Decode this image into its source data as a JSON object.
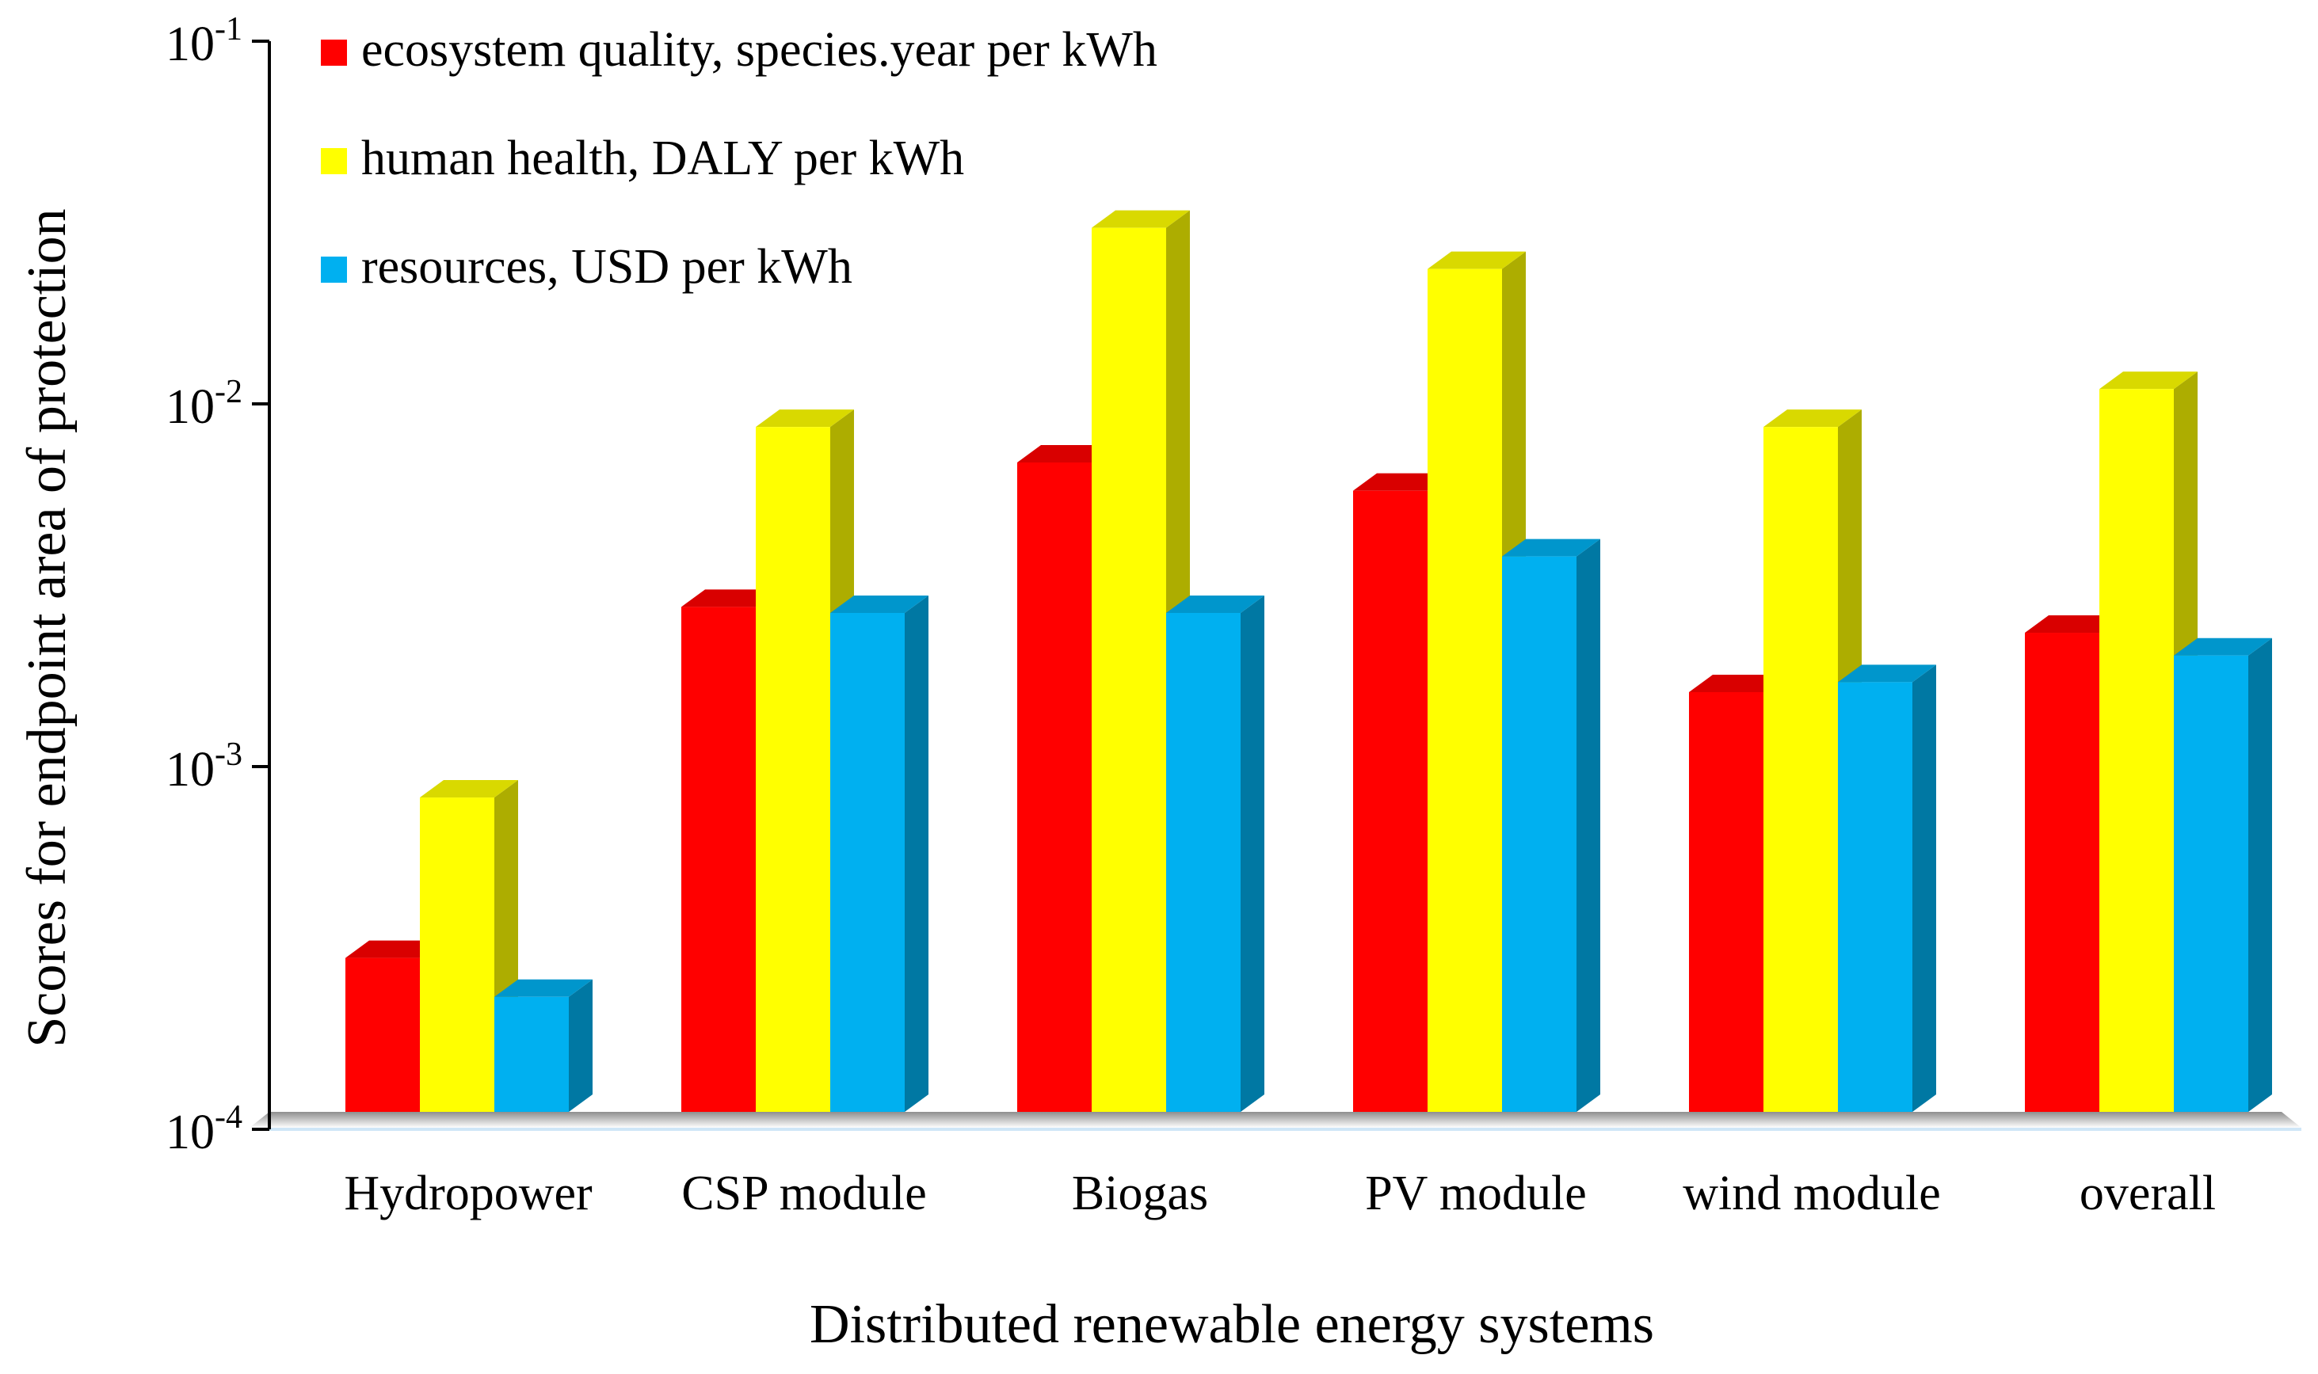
{
  "chart_data": {
    "type": "bar",
    "style": "3d-grouped",
    "scale": "log",
    "title": "",
    "xlabel": "Distributed renewable energy systems",
    "ylabel": "Scores for endpoint area of  protection",
    "ylim": [
      0.0001,
      0.1
    ],
    "y_ticks": [
      {
        "value": 0.1,
        "base": "10",
        "exp": "-1"
      },
      {
        "value": 0.01,
        "base": "10",
        "exp": "-2"
      },
      {
        "value": 0.001,
        "base": "10",
        "exp": "-3"
      },
      {
        "value": 0.0001,
        "base": "10",
        "exp": "-4"
      }
    ],
    "categories": [
      "Hydropower",
      "CSP module",
      "Biogas",
      "PV module",
      "wind module",
      "overall"
    ],
    "series": [
      {
        "name": "ecosystem quality, species.year per kWh",
        "color": "#ff0000",
        "values": [
          0.00027,
          0.0026,
          0.0066,
          0.0055,
          0.0015,
          0.0022
        ]
      },
      {
        "name": "human health, DALY per kWh",
        "color": "#ffff00",
        "values": [
          0.00076,
          0.0083,
          0.03,
          0.023,
          0.0083,
          0.0106
        ]
      },
      {
        "name": "resources, USD per kWh",
        "color": "#00b0f0",
        "values": [
          0.00021,
          0.0025,
          0.0025,
          0.0036,
          0.0016,
          0.0019
        ]
      }
    ],
    "legend_position": "top-left",
    "grid": false
  }
}
